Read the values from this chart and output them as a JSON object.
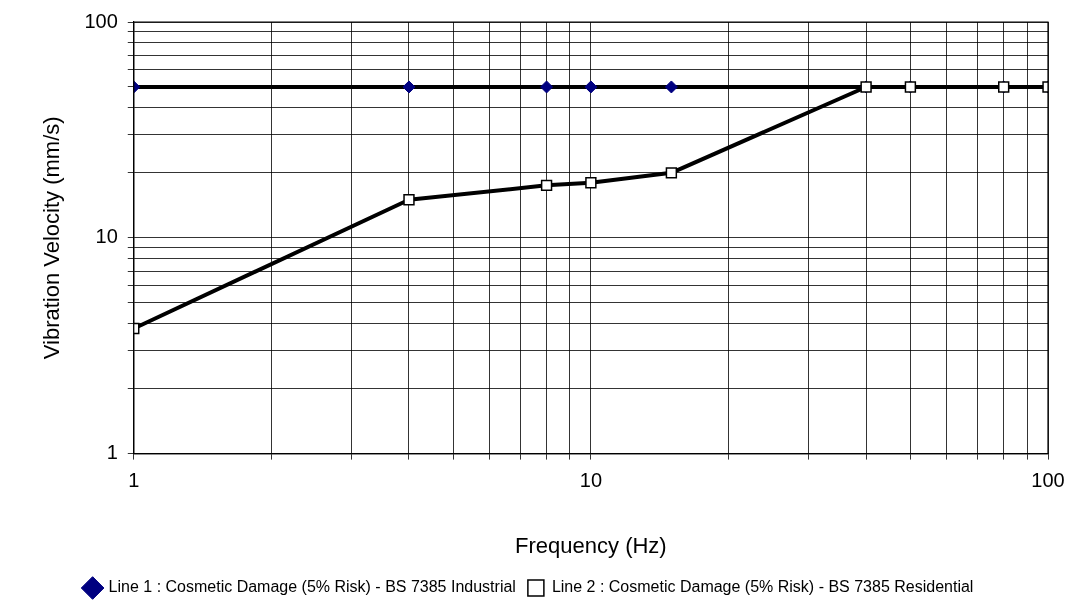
{
  "chart_data": {
    "type": "line",
    "xlabel": "Frequency (Hz)",
    "ylabel": "Vibration Velocity (mm/s)",
    "log": "xy",
    "grid": true,
    "legend": "bottom",
    "line_style": "solid",
    "xlim": [
      1,
      100
    ],
    "ylim": [
      1,
      100
    ],
    "xticks": [
      1,
      {
        "value": 2,
        "label": null
      },
      {
        "value": 3,
        "label": null
      },
      {
        "value": 4,
        "label": null
      },
      {
        "value": 5,
        "label": null
      },
      {
        "value": 6,
        "label": null
      },
      {
        "value": 7,
        "label": null
      },
      {
        "value": 8,
        "label": null
      },
      {
        "value": 9,
        "label": null
      },
      10,
      {
        "value": 20,
        "label": null
      },
      {
        "value": 30,
        "label": null
      },
      {
        "value": 40,
        "label": null
      },
      {
        "value": 50,
        "label": null
      },
      {
        "value": 60,
        "label": null
      },
      {
        "value": 70,
        "label": null
      },
      {
        "value": 80,
        "label": null
      },
      {
        "value": 90,
        "label": null
      },
      100
    ],
    "yticks": [
      1,
      {
        "value": 2,
        "label": null
      },
      {
        "value": 3,
        "label": null
      },
      {
        "value": 4,
        "label": null
      },
      {
        "value": 5,
        "label": null
      },
      {
        "value": 6,
        "label": null
      },
      {
        "value": 7,
        "label": null
      },
      {
        "value": 8,
        "label": null
      },
      {
        "value": 9,
        "label": null
      },
      10,
      {
        "value": 20,
        "label": null
      },
      {
        "value": 30,
        "label": null
      },
      {
        "value": 40,
        "label": null
      },
      {
        "value": 50,
        "label": null
      },
      {
        "value": 60,
        "label": null
      },
      {
        "value": 70,
        "label": null
      },
      {
        "value": 80,
        "label": null
      },
      {
        "value": 90,
        "label": null
      },
      100
    ],
    "series": [
      {
        "name": "Line 1 : Cosmetic Damage (5% Risk) - BS 7385 Industrial",
        "color": "#000080",
        "marker": "diamond",
        "x": [
          1,
          4,
          8,
          10,
          15,
          40,
          50,
          80,
          100
        ],
        "values": [
          50,
          50,
          50,
          50,
          50,
          50,
          50,
          50,
          50
        ]
      },
      {
        "name": "Line 2 : Cosmetic Damage (5% Risk) - BS 7385 Residential",
        "color": "#000000",
        "marker": "square",
        "x": [
          1,
          4,
          8,
          10,
          15,
          40,
          50,
          80,
          100
        ],
        "values": [
          3.8,
          15,
          17.5,
          18,
          20,
          50,
          50,
          50,
          50
        ]
      }
    ]
  }
}
